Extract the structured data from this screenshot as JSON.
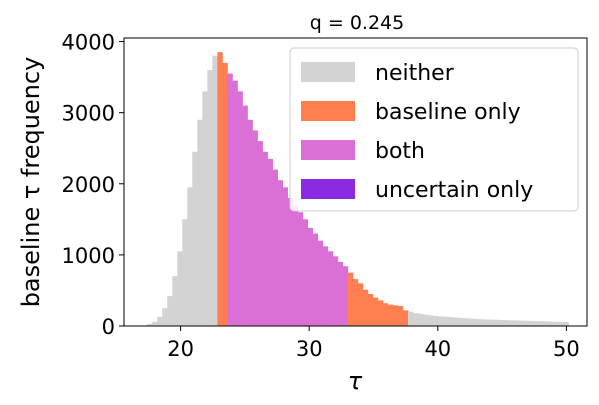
{
  "chart_data": {
    "type": "bar",
    "title": "q = 0.245",
    "xlabel": "τ",
    "ylabel": "baseline τ frequency",
    "xlim": [
      15.6,
      51.6
    ],
    "ylim": [
      0,
      4050
    ],
    "x_ticks": [
      20,
      30,
      40,
      50
    ],
    "y_ticks": [
      0,
      1000,
      2000,
      3000,
      4000
    ],
    "grid": false,
    "legend_position": "upper right",
    "bin_width": 0.39,
    "bin_starts": [
      17.4,
      17.79,
      18.18,
      18.57,
      18.96,
      19.35,
      19.74,
      20.13,
      20.52,
      20.91,
      21.3,
      21.69,
      22.08,
      22.47,
      22.86,
      23.25,
      23.64,
      24.03,
      24.42,
      24.81,
      25.2,
      25.59,
      25.98,
      26.37,
      26.76,
      27.15,
      27.54,
      27.93,
      28.32,
      28.71,
      29.1,
      29.49,
      29.88,
      30.27,
      30.66,
      31.05,
      31.44,
      31.83,
      32.22,
      32.61,
      33.0,
      33.39,
      33.78,
      34.17,
      34.56,
      34.95,
      35.34,
      35.73,
      36.12,
      36.51,
      36.9,
      37.29,
      37.68,
      38.07,
      38.46,
      38.85,
      39.24,
      39.63,
      40.02,
      40.41,
      40.8,
      41.19,
      41.58,
      41.97,
      42.36,
      42.75,
      43.14,
      43.53,
      43.92,
      44.31,
      44.7,
      45.09,
      45.48,
      45.87,
      46.26,
      46.65,
      47.04,
      47.43,
      47.82,
      48.21,
      48.6,
      48.99,
      49.38,
      49.77
    ],
    "frequencies": [
      30,
      60,
      130,
      250,
      420,
      700,
      1050,
      1500,
      1950,
      2450,
      2900,
      3300,
      3600,
      3800,
      3850,
      3700,
      3550,
      3450,
      3300,
      3100,
      2900,
      2750,
      2600,
      2450,
      2350,
      2200,
      2050,
      1950,
      1800,
      1700,
      1600,
      1500,
      1380,
      1300,
      1200,
      1120,
      1050,
      980,
      900,
      840,
      750,
      660,
      600,
      510,
      450,
      400,
      360,
      320,
      300,
      290,
      280,
      220,
      200,
      180,
      170,
      160,
      150,
      140,
      135,
      130,
      125,
      120,
      115,
      110,
      105,
      100,
      95,
      92,
      90,
      88,
      85,
      83,
      80,
      78,
      76,
      74,
      72,
      70,
      68,
      65,
      62,
      60,
      58,
      55
    ],
    "categories": [
      "neither",
      "neither",
      "neither",
      "neither",
      "neither",
      "neither",
      "neither",
      "neither",
      "neither",
      "neither",
      "neither",
      "neither",
      "neither",
      "neither",
      "baseline only",
      "baseline only",
      "both",
      "both",
      "both",
      "both",
      "both",
      "both",
      "both",
      "both",
      "both",
      "both",
      "both",
      "both",
      "both",
      "both",
      "both",
      "both",
      "both",
      "both",
      "both",
      "both",
      "both",
      "both",
      "both",
      "both",
      "baseline only",
      "baseline only",
      "baseline only",
      "baseline only",
      "baseline only",
      "baseline only",
      "baseline only",
      "baseline only",
      "baseline only",
      "baseline only",
      "baseline only",
      "baseline only",
      "neither",
      "neither",
      "neither",
      "neither",
      "neither",
      "neither",
      "neither",
      "neither",
      "neither",
      "neither",
      "neither",
      "neither",
      "neither",
      "neither",
      "neither",
      "neither",
      "neither",
      "neither",
      "neither",
      "neither",
      "neither",
      "neither",
      "neither",
      "neither",
      "neither",
      "neither",
      "neither",
      "neither",
      "neither",
      "neither",
      "neither",
      "neither"
    ],
    "series": [
      {
        "name": "neither",
        "color": "#d3d3d3"
      },
      {
        "name": "baseline only",
        "color": "#ff7f50"
      },
      {
        "name": "both",
        "color": "#da70d6"
      },
      {
        "name": "uncertain only",
        "color": "#8a2be2"
      }
    ]
  }
}
